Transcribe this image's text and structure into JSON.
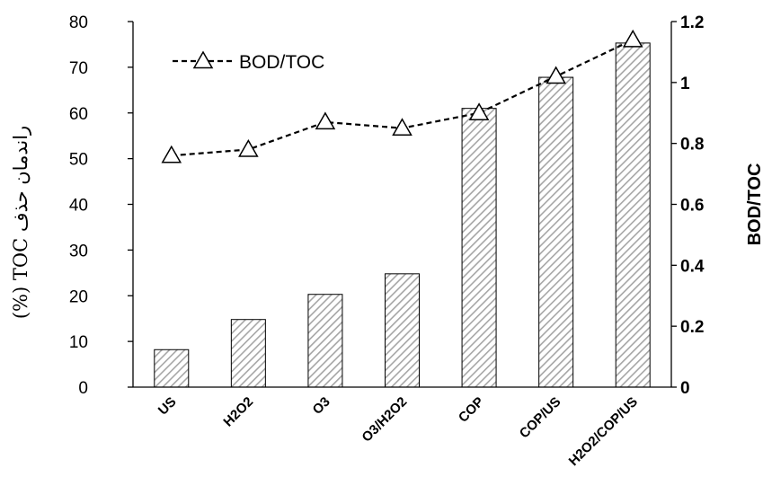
{
  "chart_data": {
    "type": "bar",
    "categories": [
      "US",
      "H2O2",
      "O3",
      "O3/H2O2",
      "COP",
      "COP/US",
      "H2O2/COP/US"
    ],
    "series": [
      {
        "values": [
          8.2,
          14.8,
          20.3,
          24.8,
          61.0,
          67.8,
          75.3
        ]
      },
      {
        "name": "BOD/TOC",
        "type": "line",
        "axis": "right",
        "marker": "triangle",
        "line_style": "dashed",
        "values": [
          0.76,
          0.78,
          0.87,
          0.85,
          0.9,
          1.02,
          1.14
        ]
      }
    ],
    "ylabel": "راندمان حذف TOC (%)",
    "y2label": "BOD/TOC",
    "ylim": [
      0,
      80
    ],
    "y2lim": [
      0,
      1.2
    ],
    "yticks": [
      "0",
      "10",
      "20",
      "30",
      "40",
      "50",
      "60",
      "70",
      "80"
    ],
    "y2ticks": [
      "0",
      "0.2",
      "0.4",
      "0.6",
      "0.8",
      "1",
      "1.2"
    ],
    "legend": {
      "label": "BOD/TOC",
      "placement": "top-left"
    },
    "bar_fill": "diagonal-hatch",
    "colors": {
      "bar_hatch": "#a6a6a6",
      "bar_edge": "#000000",
      "line": "#000000",
      "marker_fill": "#ffffff"
    },
    "grid": false
  }
}
